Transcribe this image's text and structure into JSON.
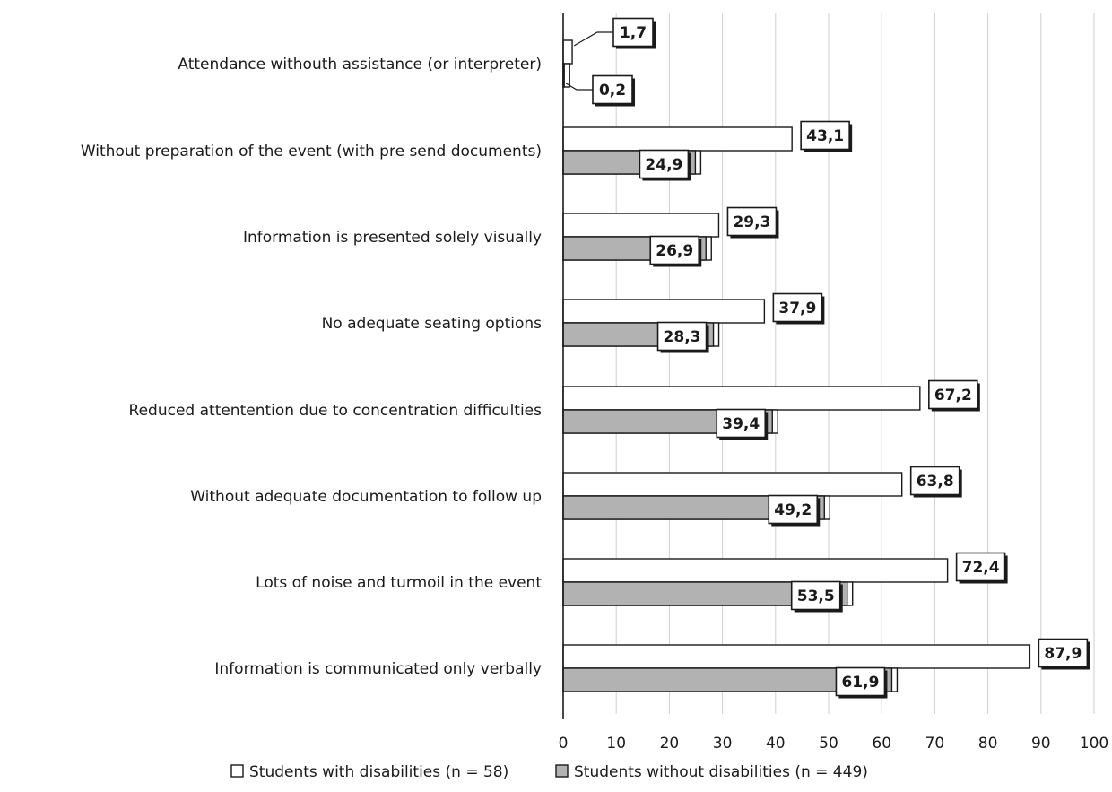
{
  "chart_data": {
    "type": "bar",
    "orientation": "horizontal",
    "categories": [
      "Attendance withouth assistance (or interpreter)",
      "Without preparation of the event (with pre send documents)",
      "Information is presented solely visually",
      "No adequate seating options",
      "Reduced attentention due to concentration difficulties",
      "Without adequate documentation to follow up",
      "Lots of noise and turmoil in the event",
      "Information is communicated only verbally"
    ],
    "series": [
      {
        "name": "Students with disabilities (n = 58)",
        "color": "#ffffff",
        "values": [
          1.7,
          43.1,
          29.3,
          37.9,
          67.2,
          63.8,
          72.4,
          87.9
        ],
        "labels": [
          "1,7",
          "43,1",
          "29,3",
          "37,9",
          "67,2",
          "63,8",
          "72,4",
          "87,9"
        ]
      },
      {
        "name": "Students without disabilities (n = 449)",
        "color": "#b2b2b2",
        "values": [
          0.2,
          24.9,
          26.9,
          28.3,
          39.4,
          49.2,
          53.5,
          61.9
        ],
        "labels": [
          "0,2",
          "24,9",
          "26,9",
          "28,3",
          "39,4",
          "49,2",
          "53,5",
          "61,9"
        ]
      }
    ],
    "xlim": [
      0,
      100
    ],
    "xticks": [
      0,
      10,
      20,
      30,
      40,
      50,
      60,
      70,
      80,
      90,
      100
    ],
    "xtick_labels": [
      "0",
      "10",
      "20",
      "30",
      "40",
      "50",
      "60",
      "70",
      "80",
      "90",
      "100"
    ],
    "grid": true,
    "legend_position": "bottom",
    "title": "",
    "xlabel": "",
    "ylabel": ""
  }
}
